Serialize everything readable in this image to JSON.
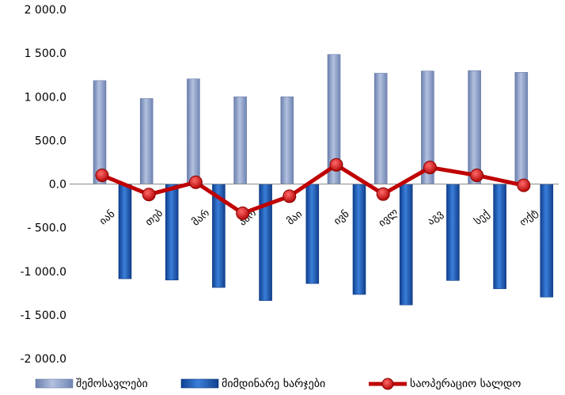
{
  "chart_data": {
    "type": "bar",
    "categories": [
      "იან",
      "თებ",
      "მარ",
      "აპრ",
      "მაი",
      "ივნ",
      "ივლ",
      "აგვ",
      "სექ",
      "ოქტ"
    ],
    "series": [
      {
        "name": "შემოსავლები",
        "type": "bar",
        "color": "#8497c0",
        "values": [
          1185,
          980,
          1205,
          1000,
          1000,
          1485,
          1270,
          1295,
          1300,
          1280
        ]
      },
      {
        "name": "მიმდინარე ხარჯები",
        "type": "bar",
        "color": "#1f5bb5",
        "values": [
          -1085,
          -1100,
          -1185,
          -1335,
          -1140,
          -1265,
          -1385,
          -1105,
          -1200,
          -1295
        ]
      },
      {
        "name": "საოპერაციო სალდო",
        "type": "line",
        "color": "#c00000",
        "values": [
          100,
          -120,
          20,
          -335,
          -140,
          220,
          -115,
          190,
          100,
          -15
        ]
      }
    ],
    "ylim": [
      -2000,
      2000
    ],
    "yticks": [
      2000,
      1500,
      1000,
      500,
      0,
      -500,
      -1000,
      -1500,
      -2000
    ],
    "ytick_labels": [
      "2 000.0",
      "1 500.0",
      "1 000.0",
      "500.0",
      "0.0",
      "- 500.0",
      "-1 000.0",
      "-1 500.0",
      "-2 000.0"
    ],
    "grid": false,
    "legend_position": "bottom"
  }
}
